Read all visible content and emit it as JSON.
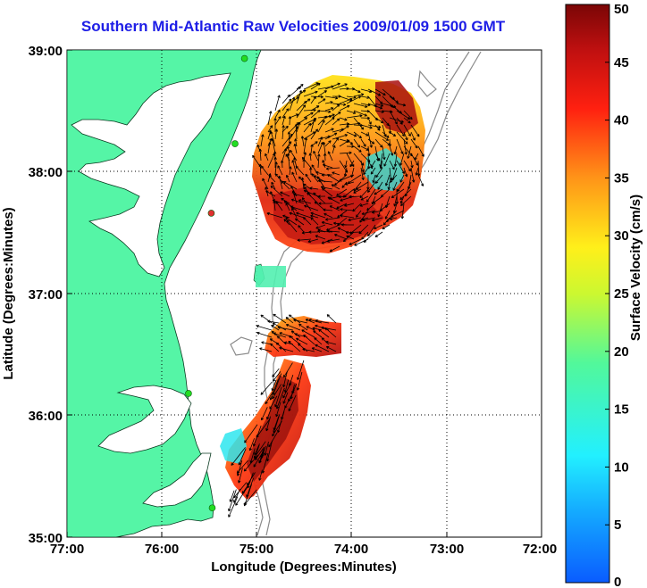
{
  "title": "Southern Mid-Atlantic Raw Velocities 2009/01/09 1500 GMT",
  "axes": {
    "xlabel": "Longitude (Degrees:Minutes)",
    "ylabel": "Latitude (Degrees:Minutes)",
    "x_ticks": [
      "77:00",
      "76:00",
      "75:00",
      "74:00",
      "73:00",
      "72:00"
    ],
    "y_ticks": [
      "39:00",
      "38:00",
      "37:00",
      "36:00",
      "35:00"
    ],
    "x_range_deg_west": [
      77,
      72
    ],
    "y_range_deg_north": [
      35,
      39
    ],
    "grid": "dotted"
  },
  "colorbar": {
    "label": "Surface Velocity (cm/s)",
    "ticks": [
      "50",
      "45",
      "40",
      "35",
      "30",
      "25",
      "20",
      "15",
      "10",
      "5",
      "0"
    ],
    "range": [
      0,
      50
    ]
  },
  "colors": {
    "title": "#1e1ee6",
    "land": "#55f5a6",
    "bathymetry": "#8a8a8a",
    "station": "#22dd22",
    "station_alt": "#e03030"
  },
  "icon_names": [
    "station-marker-icon",
    "current-vector-arrow-icon"
  ],
  "stations": [
    {
      "lon": 75.13,
      "lat": 38.93,
      "type": "normal"
    },
    {
      "lon": 75.23,
      "lat": 38.23,
      "type": "normal"
    },
    {
      "lon": 75.48,
      "lat": 37.66,
      "type": "alt"
    },
    {
      "lon": 75.72,
      "lat": 36.18,
      "type": "normal"
    },
    {
      "lon": 75.47,
      "lat": 35.24,
      "type": "normal"
    }
  ]
}
